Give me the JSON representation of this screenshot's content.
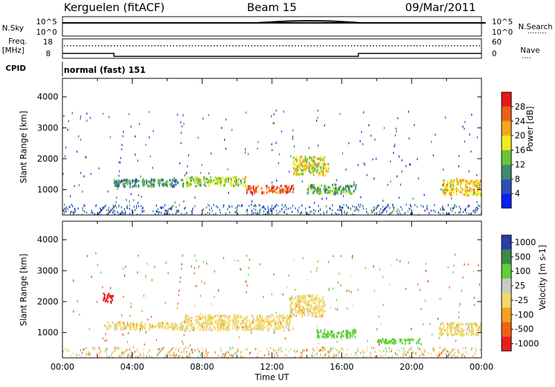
{
  "header": {
    "station": "Kerguelen (fitACF)",
    "beam": "Beam 15",
    "date": "09/Mar/2011"
  },
  "panels": {
    "nsky": {
      "label": "N.Sky",
      "ticks_left": [
        "10^5",
        "10^0"
      ],
      "ticks_right": [
        "10^5",
        "10^0"
      ],
      "right_label": "N.Search",
      "right_marker": "........"
    },
    "freq": {
      "label_top": "Freq.",
      "label_bottom": "[MHz]",
      "ticks_left": [
        "18",
        "8"
      ],
      "ticks_right": [
        "60",
        "0"
      ],
      "right_label": "Nave",
      "right_marker": "....",
      "freq_mhz": [
        {
          "from": 0.0,
          "to": 2.95,
          "value": 10.5
        },
        {
          "from": 2.95,
          "to": 16.95,
          "value": 9.0
        },
        {
          "from": 16.95,
          "to": 24.0,
          "value": 10.5
        }
      ]
    },
    "cpid": {
      "label": "CPID",
      "value": "normal (fast) 151"
    }
  },
  "colors": {
    "power": [
      "#0a1ff0",
      "#2f4fb6",
      "#3c8c6a",
      "#6cc43a",
      "#f2ea20",
      "#f5a618",
      "#ee6018",
      "#e81818"
    ],
    "velocity": [
      "#ee1c1c",
      "#f25e14",
      "#f6a01a",
      "#f2d86a",
      "#c8c8c8",
      "#5fcf3a",
      "#3a8a4a",
      "#2a3ea8"
    ]
  },
  "chart_data": [
    {
      "type": "heatmap",
      "title": "",
      "xlabel": "Time UT",
      "ylabel": "Slant Range [km]",
      "xlim": [
        0,
        24
      ],
      "ylim": [
        180,
        4600
      ],
      "x_ticks": [
        "00:00",
        "04:00",
        "08:00",
        "12:00",
        "16:00",
        "20:00",
        "00:00"
      ],
      "y_ticks": [
        1000,
        2000,
        3000,
        4000
      ],
      "colorbar": {
        "label": "Power [dB]",
        "range": [
          0,
          32
        ],
        "ticks": [
          "4",
          "8",
          "12",
          "16",
          "20",
          "24",
          "28"
        ]
      },
      "regions": [
        {
          "t0": 2.9,
          "t1": 7.0,
          "r_center": 1250,
          "r_width": 250,
          "value": 10
        },
        {
          "t0": 7.0,
          "t1": 10.5,
          "r_center": 1300,
          "r_width": 300,
          "value": 16
        },
        {
          "t0": 10.5,
          "t1": 13.2,
          "r_center": 1050,
          "r_width": 250,
          "value": 26
        },
        {
          "t0": 13.2,
          "t1": 15.2,
          "r_center": 1800,
          "r_width": 600,
          "value": 18
        },
        {
          "t0": 14.0,
          "t1": 16.8,
          "r_center": 1050,
          "r_width": 300,
          "value": 12
        },
        {
          "t0": 21.7,
          "t1": 24.0,
          "r_center": 1100,
          "r_width": 500,
          "value": 20
        }
      ]
    },
    {
      "type": "heatmap",
      "title": "",
      "xlabel": "Time UT",
      "ylabel": "Slant Range [km]",
      "xlim": [
        0,
        24
      ],
      "ylim": [
        180,
        4600
      ],
      "x_ticks": [
        "00:00",
        "04:00",
        "08:00",
        "12:00",
        "16:00",
        "20:00",
        "00:00"
      ],
      "y_ticks": [
        1000,
        2000,
        3000,
        4000
      ],
      "colorbar": {
        "label": "Velocity [m s-1]",
        "range": [
          -1000,
          1000
        ],
        "ticks": [
          "1000",
          "500",
          "100",
          "25",
          "-25",
          "-100",
          "-500",
          "-1000"
        ]
      },
      "regions": [
        {
          "t0": 2.5,
          "t1": 7.0,
          "r_center": 1250,
          "r_width": 250,
          "value": 0
        },
        {
          "t0": 7.0,
          "t1": 13.0,
          "r_center": 1350,
          "r_width": 500,
          "value": 0
        },
        {
          "t0": 13.0,
          "t1": 15.0,
          "r_center": 1900,
          "r_width": 700,
          "value": 0
        },
        {
          "t0": 14.5,
          "t1": 16.8,
          "r_center": 1000,
          "r_width": 250,
          "value": 150
        },
        {
          "t0": 18.0,
          "t1": 20.5,
          "r_center": 750,
          "r_width": 150,
          "value": 150
        },
        {
          "t0": 21.5,
          "t1": 24.0,
          "r_center": 1150,
          "r_width": 400,
          "value": 0
        },
        {
          "t0": 2.3,
          "t1": 2.9,
          "r_center": 2150,
          "r_width": 300,
          "value": -800
        }
      ]
    }
  ]
}
